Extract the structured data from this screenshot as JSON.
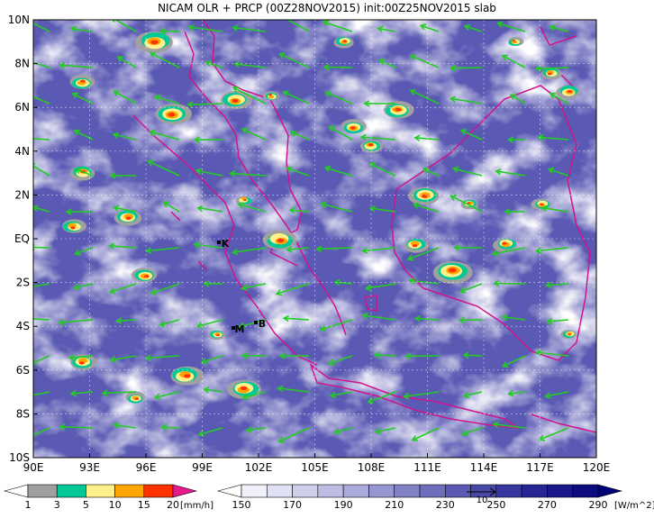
{
  "header": {
    "title": "NICAM OLR + PRCP (00Z28NOV2015) init:00Z25NOV2015 slab"
  },
  "map": {
    "lat_labels": [
      "10N",
      "8N",
      "6N",
      "4N",
      "2N",
      "EQ",
      "2S",
      "4S",
      "6S",
      "8S",
      "10S"
    ],
    "lon_labels": [
      "90E",
      "93E",
      "96E",
      "99E",
      "102E",
      "105E",
      "108E",
      "111E",
      "114E",
      "117E",
      "120E"
    ],
    "stations": [
      {
        "label": "K"
      },
      {
        "label": "M"
      },
      {
        "label": "B"
      }
    ]
  },
  "precip_legend": {
    "labels": [
      1,
      3,
      5,
      10,
      15,
      20
    ],
    "unit": "[mm/h]",
    "colors": [
      "#ffffff",
      "#a0a0a0",
      "#00c896",
      "#fff08c",
      "#ffa500",
      "#ff3200",
      "#e6198c"
    ]
  },
  "olr_legend": {
    "labels": [
      150,
      170,
      190,
      210,
      230,
      250,
      270,
      290
    ],
    "unit": "[W/m^2]",
    "colors": [
      "#ffffff",
      "#f0f0fa",
      "#e0e0f4",
      "#cfcfec",
      "#bdbde4",
      "#aaaadb",
      "#9696d0",
      "#8282c6",
      "#6e6ebc",
      "#5a5ab2",
      "#4848a8",
      "#36369e",
      "#262694",
      "#18188a",
      "#0c0c80",
      "#000078"
    ]
  },
  "vector_reference": "10"
}
